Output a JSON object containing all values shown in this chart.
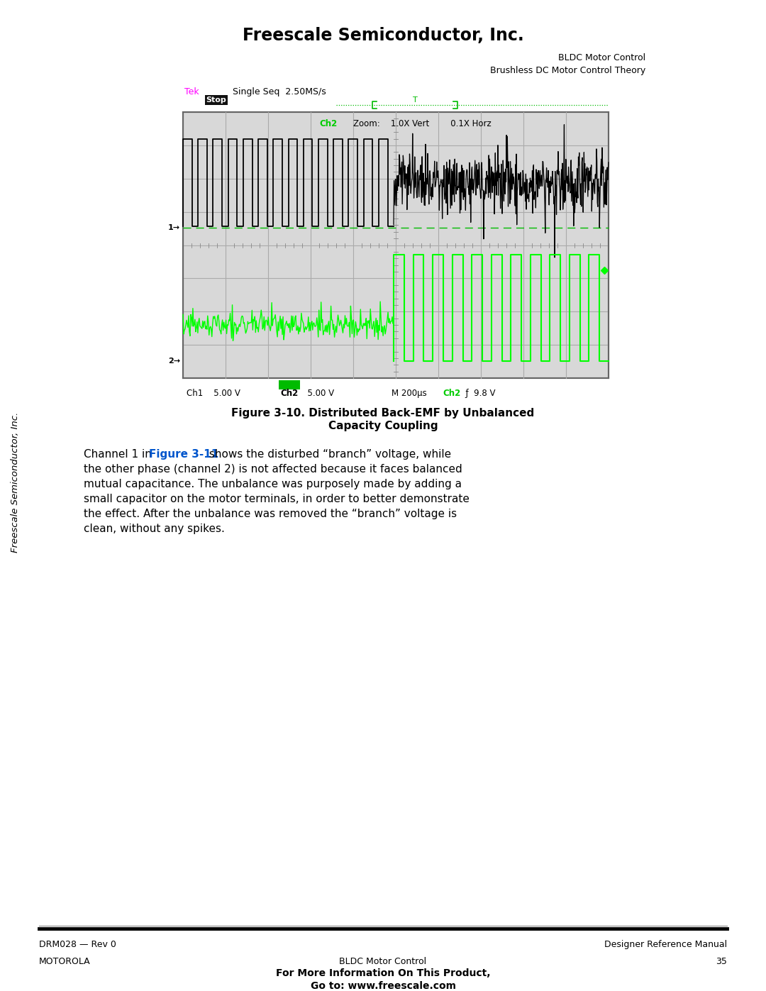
{
  "page_width": 10.8,
  "page_height": 13.97,
  "bg_color": "#ffffff",
  "header_title": "Freescale Semiconductor, Inc.",
  "header_right_line1": "BLDC Motor Control",
  "header_right_line2": "Brushless DC Motor Control Theory",
  "footer_left": "DRM028 — Rev 0",
  "footer_right": "Designer Reference Manual",
  "footer_bottom_left": "MOTOROLA",
  "footer_bottom_center": "BLDC Motor Control",
  "footer_bottom_center2": "For More Information On This Product,",
  "footer_bottom_center3": "Go to: www.freescale.com",
  "footer_bottom_right": "35",
  "figure_caption_line1": "Figure 3-10. Distributed Back-EMF by Unbalanced",
  "figure_caption_line2": "Capacity Coupling",
  "side_text": "Freescale Semiconductor, Inc.",
  "figure_ref": "Figure 3-11",
  "osc_bg": "#d8d8d8",
  "tek_color": "#ff00ff",
  "ch1_color": "#000000",
  "ch2_color": "#00ff00",
  "body_texts": [
    "the other phase (channel 2) is not affected because it faces balanced",
    "mutual capacitance. The unbalance was purposely made by adding a",
    "small capacitor on the motor terminals, in order to better demonstrate",
    "the effect. After the unbalance was removed the “branch” voltage is",
    "clean, without any spikes."
  ]
}
